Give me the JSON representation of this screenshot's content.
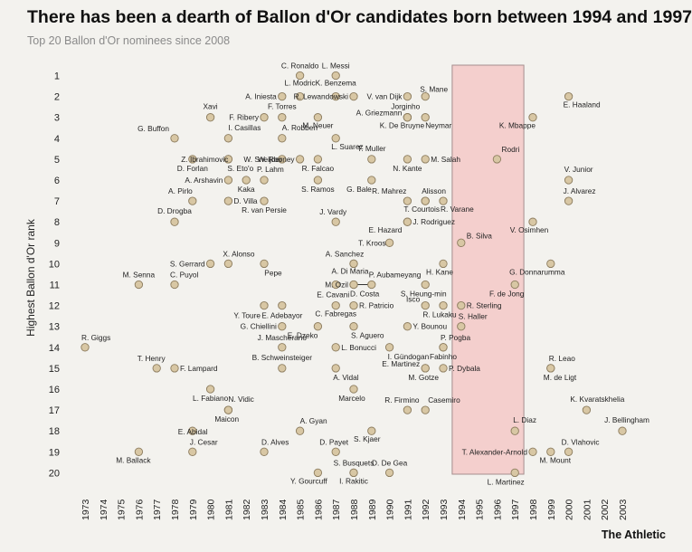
{
  "title": "There has been a dearth of Ballon d'Or candidates born between 1994 and 1997",
  "subtitle": "Top 20 Ballon d'Or nominees since 2008",
  "credit": "The Athletic",
  "colors": {
    "background": "#f3f2ee",
    "dot_fill": "#d8c7a4",
    "dot_stroke": "#8c7c5e",
    "highlight_fill": "#f4cfcd",
    "highlight_stroke": "#a58d8d",
    "text": "#222222"
  },
  "chart_data": {
    "type": "scatter",
    "title": "There has been a dearth of Ballon d'Or candidates born between 1994 and 1997",
    "subtitle": "Top 20 Ballon d'Or nominees since 2008",
    "xlabel": "",
    "ylabel": "Highest Ballon d'Or rank",
    "xlim": [
      1973,
      2003
    ],
    "ylim": [
      1,
      20
    ],
    "y_reversed": true,
    "grid": false,
    "x_ticks": [
      "1973",
      "1974",
      "1975",
      "1976",
      "1977",
      "1978",
      "1979",
      "1980",
      "1981",
      "1982",
      "1983",
      "1984",
      "1985",
      "1986",
      "1987",
      "1988",
      "1989",
      "1990",
      "1991",
      "1992",
      "1993",
      "1994",
      "1995",
      "1996",
      "1997",
      "1998",
      "1999",
      "2000",
      "2001",
      "2002",
      "2003"
    ],
    "y_ticks": [
      "1",
      "2",
      "3",
      "4",
      "5",
      "6",
      "7",
      "8",
      "9",
      "10",
      "11",
      "12",
      "13",
      "14",
      "15",
      "16",
      "17",
      "18",
      "19",
      "20"
    ],
    "highlight_range": [
      1993.5,
      1997.5
    ],
    "points": [
      {
        "name": "C. Ronaldo",
        "x": 1985,
        "y": 1
      },
      {
        "name": "L. Messi",
        "x": 1987,
        "y": 1
      },
      {
        "name": "L. Modric",
        "x": 1985,
        "y": 2
      },
      {
        "name": "K. Benzema",
        "x": 1987,
        "y": 2
      },
      {
        "name": "A. Iniesta",
        "x": 1984,
        "y": 2
      },
      {
        "name": "R. Lewandowski",
        "x": 1988,
        "y": 2
      },
      {
        "name": "V. van Dijk",
        "x": 1991,
        "y": 2
      },
      {
        "name": "S. Mane",
        "x": 1992,
        "y": 2
      },
      {
        "name": "E. Haaland",
        "x": 2000,
        "y": 2
      },
      {
        "name": "Xavi",
        "x": 1980,
        "y": 3
      },
      {
        "name": "F. Ribery",
        "x": 1983,
        "y": 3
      },
      {
        "name": "F. Torres",
        "x": 1984,
        "y": 3
      },
      {
        "name": "M. Neuer",
        "x": 1986,
        "y": 3
      },
      {
        "name": "A. Griezmann",
        "x": 1991,
        "y": 3
      },
      {
        "name": "K. De Bruyne",
        "x": 1991,
        "y": 3
      },
      {
        "name": "Jorginho",
        "x": 1991,
        "y": 3
      },
      {
        "name": "Neymar",
        "x": 1992,
        "y": 3
      },
      {
        "name": "K. Mbappe",
        "x": 1998,
        "y": 3
      },
      {
        "name": "G. Buffon",
        "x": 1978,
        "y": 4
      },
      {
        "name": "I. Casillas",
        "x": 1981,
        "y": 4
      },
      {
        "name": "A. Robben",
        "x": 1984,
        "y": 4
      },
      {
        "name": "Z. Ibrahimovic",
        "x": 1981,
        "y": 5
      },
      {
        "name": "W. Sneijder",
        "x": 1984,
        "y": 5
      },
      {
        "name": "L. Suarez",
        "x": 1987,
        "y": 4
      },
      {
        "name": "W. Rooney",
        "x": 1985,
        "y": 5
      },
      {
        "name": "T. Muller",
        "x": 1989,
        "y": 5
      },
      {
        "name": "M. Salah",
        "x": 1992,
        "y": 5
      },
      {
        "name": "Rodri",
        "x": 1996,
        "y": 5
      },
      {
        "name": "D. Forlan",
        "x": 1979,
        "y": 5
      },
      {
        "name": "S. Eto'o",
        "x": 1981,
        "y": 5
      },
      {
        "name": "R. Falcao",
        "x": 1986,
        "y": 5
      },
      {
        "name": "N. Kante",
        "x": 1991,
        "y": 5
      },
      {
        "name": "P. Lahm",
        "x": 1983,
        "y": 6
      },
      {
        "name": "A. Arshavin",
        "x": 1981,
        "y": 6
      },
      {
        "name": "Kaka",
        "x": 1982,
        "y": 6
      },
      {
        "name": "S. Ramos",
        "x": 1986,
        "y": 6
      },
      {
        "name": "G. Bale",
        "x": 1989,
        "y": 6
      },
      {
        "name": "V. Junior",
        "x": 2000,
        "y": 6
      },
      {
        "name": "A. Pirlo",
        "x": 1979,
        "y": 7
      },
      {
        "name": "D. Villa",
        "x": 1981,
        "y": 7
      },
      {
        "name": "R. van Persie",
        "x": 1983,
        "y": 7
      },
      {
        "name": "R. Mahrez",
        "x": 1991,
        "y": 7
      },
      {
        "name": "Alisson",
        "x": 1992,
        "y": 7
      },
      {
        "name": "T. Courtois",
        "x": 1992,
        "y": 7
      },
      {
        "name": "R. Varane",
        "x": 1993,
        "y": 7
      },
      {
        "name": "J. Alvarez",
        "x": 2000,
        "y": 7
      },
      {
        "name": "D. Drogba",
        "x": 1978,
        "y": 8
      },
      {
        "name": "J. Vardy",
        "x": 1987,
        "y": 8
      },
      {
        "name": "J. Rodriguez",
        "x": 1991,
        "y": 8
      },
      {
        "name": "E. Hazard",
        "x": 1991,
        "y": 8
      },
      {
        "name": "V. Osimhen",
        "x": 1998,
        "y": 8
      },
      {
        "name": "B. Silva",
        "x": 1994,
        "y": 9
      },
      {
        "name": "T. Kroos",
        "x": 1990,
        "y": 9
      },
      {
        "name": "X. Alonso",
        "x": 1981,
        "y": 10
      },
      {
        "name": "S. Gerrard",
        "x": 1980,
        "y": 10
      },
      {
        "name": "Pepe",
        "x": 1983,
        "y": 10
      },
      {
        "name": "A. Sanchez",
        "x": 1988,
        "y": 10
      },
      {
        "name": "A. Di Maria",
        "x": 1988,
        "y": 10
      },
      {
        "name": "P. Aubameyang",
        "x": 1989,
        "y": 11
      },
      {
        "name": "H. Kane",
        "x": 1993,
        "y": 10
      },
      {
        "name": "G. Donnarumma",
        "x": 1999,
        "y": 10
      },
      {
        "name": "M. Senna",
        "x": 1976,
        "y": 11
      },
      {
        "name": "C. Puyol",
        "x": 1978,
        "y": 11
      },
      {
        "name": "M. Ozil",
        "x": 1988,
        "y": 11
      },
      {
        "name": "D. Costa",
        "x": 1988,
        "y": 11
      },
      {
        "name": "E. Cavani",
        "x": 1987,
        "y": 11
      },
      {
        "name": "S. Heung-min",
        "x": 1992,
        "y": 11
      },
      {
        "name": "F. de Jong",
        "x": 1997,
        "y": 11
      },
      {
        "name": "Y. Toure",
        "x": 1983,
        "y": 12
      },
      {
        "name": "E. Adebayor",
        "x": 1984,
        "y": 12
      },
      {
        "name": "R. Patricio",
        "x": 1988,
        "y": 12
      },
      {
        "name": "Isco",
        "x": 1992,
        "y": 12
      },
      {
        "name": "R. Lukaku",
        "x": 1993,
        "y": 12
      },
      {
        "name": "R. Sterling",
        "x": 1994,
        "y": 12
      },
      {
        "name": "C. Fabregas",
        "x": 1987,
        "y": 12
      },
      {
        "name": "G. Chiellini",
        "x": 1984,
        "y": 13
      },
      {
        "name": "E. Dzeko",
        "x": 1986,
        "y": 13
      },
      {
        "name": "S. Aguero",
        "x": 1988,
        "y": 13
      },
      {
        "name": "Y. Bounou",
        "x": 1991,
        "y": 13
      },
      {
        "name": "S. Haller",
        "x": 1994,
        "y": 13
      },
      {
        "name": "R. Giggs",
        "x": 1973,
        "y": 14
      },
      {
        "name": "J. Mascherano",
        "x": 1984,
        "y": 14
      },
      {
        "name": "L. Bonucci",
        "x": 1987,
        "y": 14
      },
      {
        "name": "I. Gündogan",
        "x": 1990,
        "y": 14
      },
      {
        "name": "P. Pogba",
        "x": 1993,
        "y": 14
      },
      {
        "name": "Fabinho",
        "x": 1993,
        "y": 14
      },
      {
        "name": "T. Henry",
        "x": 1977,
        "y": 15
      },
      {
        "name": "F. Lampard",
        "x": 1978,
        "y": 15
      },
      {
        "name": "B. Schweinsteiger",
        "x": 1984,
        "y": 15
      },
      {
        "name": "A. Vidal",
        "x": 1987,
        "y": 15
      },
      {
        "name": "E. Martinez",
        "x": 1992,
        "y": 15
      },
      {
        "name": "P. Dybala",
        "x": 1993,
        "y": 15
      },
      {
        "name": "M. Gotze",
        "x": 1992,
        "y": 15
      },
      {
        "name": "R. Leao",
        "x": 1999,
        "y": 15
      },
      {
        "name": "M. de Ligt",
        "x": 1999,
        "y": 15
      },
      {
        "name": "L. Fabiano",
        "x": 1980,
        "y": 16
      },
      {
        "name": "Marcelo",
        "x": 1988,
        "y": 16
      },
      {
        "name": "N. Vidic",
        "x": 1981,
        "y": 17
      },
      {
        "name": "Maicon",
        "x": 1981,
        "y": 17
      },
      {
        "name": "R. Firmino",
        "x": 1991,
        "y": 17
      },
      {
        "name": "Casemiro",
        "x": 1992,
        "y": 17
      },
      {
        "name": "K. Kvaratskhelia",
        "x": 2001,
        "y": 17
      },
      {
        "name": "A. Gyan",
        "x": 1985,
        "y": 18
      },
      {
        "name": "E. Abidal",
        "x": 1979,
        "y": 18
      },
      {
        "name": "S. Kjaer",
        "x": 1989,
        "y": 18
      },
      {
        "name": "L. Diaz",
        "x": 1997,
        "y": 18
      },
      {
        "name": "J. Bellingham",
        "x": 2003,
        "y": 18
      },
      {
        "name": "M. Ballack",
        "x": 1976,
        "y": 19
      },
      {
        "name": "J. Cesar",
        "x": 1979,
        "y": 19
      },
      {
        "name": "D. Alves",
        "x": 1983,
        "y": 19
      },
      {
        "name": "D. Payet",
        "x": 1987,
        "y": 19
      },
      {
        "name": "T. Alexander-Arnold",
        "x": 1998,
        "y": 19
      },
      {
        "name": "D. Vlahovic",
        "x": 2000,
        "y": 19
      },
      {
        "name": "M. Mount",
        "x": 1999,
        "y": 19
      },
      {
        "name": "S. Busquets",
        "x": 1988,
        "y": 20
      },
      {
        "name": "D. De Gea",
        "x": 1990,
        "y": 20
      },
      {
        "name": "Y. Gourcuff",
        "x": 1986,
        "y": 20
      },
      {
        "name": "I. Rakitic",
        "x": 1988,
        "y": 20
      },
      {
        "name": "L. Martinez",
        "x": 1997,
        "y": 20
      }
    ]
  }
}
